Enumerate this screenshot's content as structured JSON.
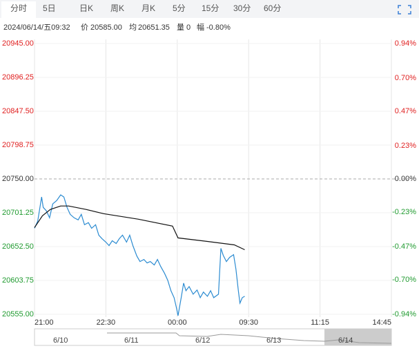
{
  "tabs": [
    "分时",
    "5日",
    "日K",
    "周K",
    "月K",
    "5分",
    "15分",
    "30分",
    "60分"
  ],
  "header": {
    "datetime": "2024/06/14/五09:32",
    "price_label": "价",
    "price": "20585.00",
    "avg_label": "均",
    "avg": "20651.35",
    "vol_label": "量",
    "vol": "0",
    "range_label": "幅",
    "range": "-0.80%"
  },
  "chart_data": {
    "type": "line",
    "ylim": [
      20555,
      20945
    ],
    "yticks": [
      {
        "value": 20945,
        "label": "20945.00"
      },
      20896.25,
      {
        "value": 20847.5,
        "label": "20847.50"
      },
      20798.75,
      {
        "value": 20750,
        "label": "20750.00"
      },
      20701.25,
      {
        "value": 20652.5,
        "label": "20652.50"
      },
      20603.75,
      {
        "value": 20555,
        "label": "20555.00"
      }
    ],
    "y2lim": [
      -0.94,
      0.94
    ],
    "y2ticks": [
      {
        "value": 0.94,
        "label": "0.94%"
      },
      {
        "value": 0.7,
        "label": "0.70%"
      },
      {
        "value": 0.47,
        "label": "0.47%"
      },
      {
        "value": 0.23,
        "label": "0.23%"
      },
      {
        "value": 0,
        "label": "0.00%"
      },
      {
        "value": -0.23,
        "label": "-0.23%"
      },
      {
        "value": -0.47,
        "label": "-0.47%"
      },
      {
        "value": -0.7,
        "label": "-0.70%"
      },
      {
        "value": -0.94,
        "label": "-0.94%"
      }
    ],
    "xlim": [
      0,
      450
    ],
    "xticks": [
      {
        "value": 0,
        "label": "21:00"
      },
      {
        "value": 90,
        "label": "22:30"
      },
      {
        "value": 180,
        "label": "00:00"
      },
      {
        "value": 270,
        "label": "09:30"
      },
      {
        "value": 360,
        "label": "11:15"
      },
      {
        "value": 450,
        "label": "14:45"
      }
    ],
    "series": [
      {
        "color": "#2b8bd1",
        "x": [
          0,
          4,
          9,
          11,
          15,
          19,
          23,
          28,
          33,
          37,
          41,
          45,
          50,
          55,
          59,
          63,
          68,
          72,
          77,
          81,
          85,
          90,
          94,
          98,
          103,
          107,
          111,
          116,
          120,
          124,
          129,
          133,
          138,
          142,
          146,
          151,
          155,
          159,
          164,
          168,
          172,
          176,
          179,
          181,
          185,
          188,
          191,
          195,
          200,
          205,
          209,
          213,
          218,
          222,
          226,
          232,
          235,
          238,
          242,
          246,
          251,
          254,
          257,
          259,
          262,
          265
        ],
        "values": [
          20679,
          20689,
          20724,
          20709,
          20704,
          20694,
          20714,
          20719,
          20727,
          20724,
          20709,
          20699,
          20694,
          20691,
          20699,
          20684,
          20687,
          20679,
          20684,
          20669,
          20664,
          20659,
          20654,
          20661,
          20657,
          20664,
          20669,
          20659,
          20669,
          20654,
          20639,
          20631,
          20634,
          20629,
          20631,
          20626,
          20634,
          20624,
          20614,
          20604,
          20589,
          20579,
          20564,
          20553,
          20579,
          20600,
          20589,
          20595,
          20584,
          20590,
          20579,
          20587,
          20581,
          20589,
          20579,
          20584,
          20650,
          20640,
          20631,
          20637,
          20641,
          20620,
          20589,
          20571,
          20579,
          20581
        ]
      },
      {
        "color": "#111111",
        "x": [
          0,
          10,
          20,
          33,
          43,
          65,
          87,
          131,
          174,
          181,
          218,
          252,
          265
        ],
        "values": [
          20680,
          20697,
          20706,
          20711,
          20711,
          20706,
          20700,
          20692,
          20682,
          20665,
          20660,
          20655,
          20648
        ]
      }
    ],
    "baseline": 20750,
    "up_color": "#e02020",
    "down_color": "#1f9a2f",
    "flat_color": "#333333"
  },
  "navigator": {
    "labels": [
      "6/10",
      "6/11",
      "6/12",
      "6/13",
      "6/14"
    ]
  }
}
